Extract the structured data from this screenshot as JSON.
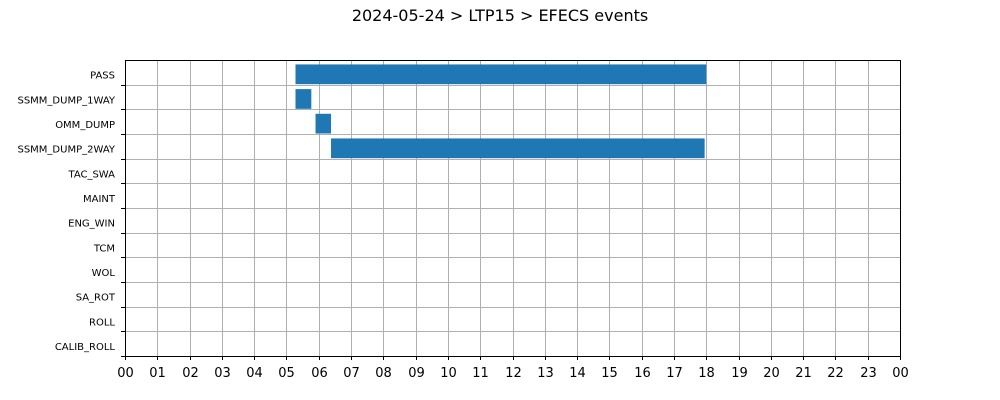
{
  "chart_data": {
    "type": "bar",
    "orientation": "horizontal-timeline",
    "title": "2024-05-24 > LTP15 > EFECS events",
    "xlabel": "",
    "ylabel": "",
    "x_unit": "hour",
    "xlim": [
      0,
      24
    ],
    "x_tick_labels": [
      "00",
      "01",
      "02",
      "03",
      "04",
      "05",
      "06",
      "07",
      "08",
      "09",
      "10",
      "11",
      "12",
      "13",
      "14",
      "15",
      "16",
      "17",
      "18",
      "19",
      "20",
      "21",
      "22",
      "23",
      "00"
    ],
    "categories": [
      "PASS",
      "SSMM_DUMP_1WAY",
      "OMM_DUMP",
      "SSMM_DUMP_2WAY",
      "TAC_SWA",
      "MAINT",
      "ENG_WIN",
      "TCM",
      "WOL",
      "SA_ROT",
      "ROLL",
      "CALIB_ROLL"
    ],
    "events": [
      {
        "category": "PASS",
        "start": 5.28,
        "end": 18.0
      },
      {
        "category": "SSMM_DUMP_1WAY",
        "start": 5.28,
        "end": 5.77
      },
      {
        "category": "OMM_DUMP",
        "start": 5.9,
        "end": 6.38
      },
      {
        "category": "SSMM_DUMP_2WAY",
        "start": 6.38,
        "end": 17.95
      }
    ],
    "bar_color": "#1f77b4",
    "grid": true,
    "legend": "none"
  }
}
